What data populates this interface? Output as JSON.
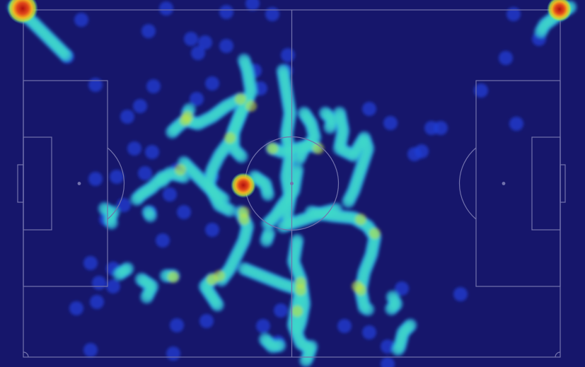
{
  "colors": {
    "background": "#16166b",
    "pitch_lines": "#6e6eaa",
    "heat_cold": "#1f3dd6",
    "heat_cool": "#2aa5e6",
    "heat_mid": "#3fd9c9",
    "heat_warm": "#c8e43c",
    "heat_hot": "#f0a020",
    "heat_peak": "#d11a12"
  },
  "heatmap": {
    "type": "player-position-heatmap",
    "hotspots": [
      {
        "id": "top-left-corner",
        "intensity": 1.0
      },
      {
        "id": "top-right-corner",
        "intensity": 0.95
      },
      {
        "id": "left-of-center-circle",
        "intensity": 0.95
      }
    ]
  }
}
